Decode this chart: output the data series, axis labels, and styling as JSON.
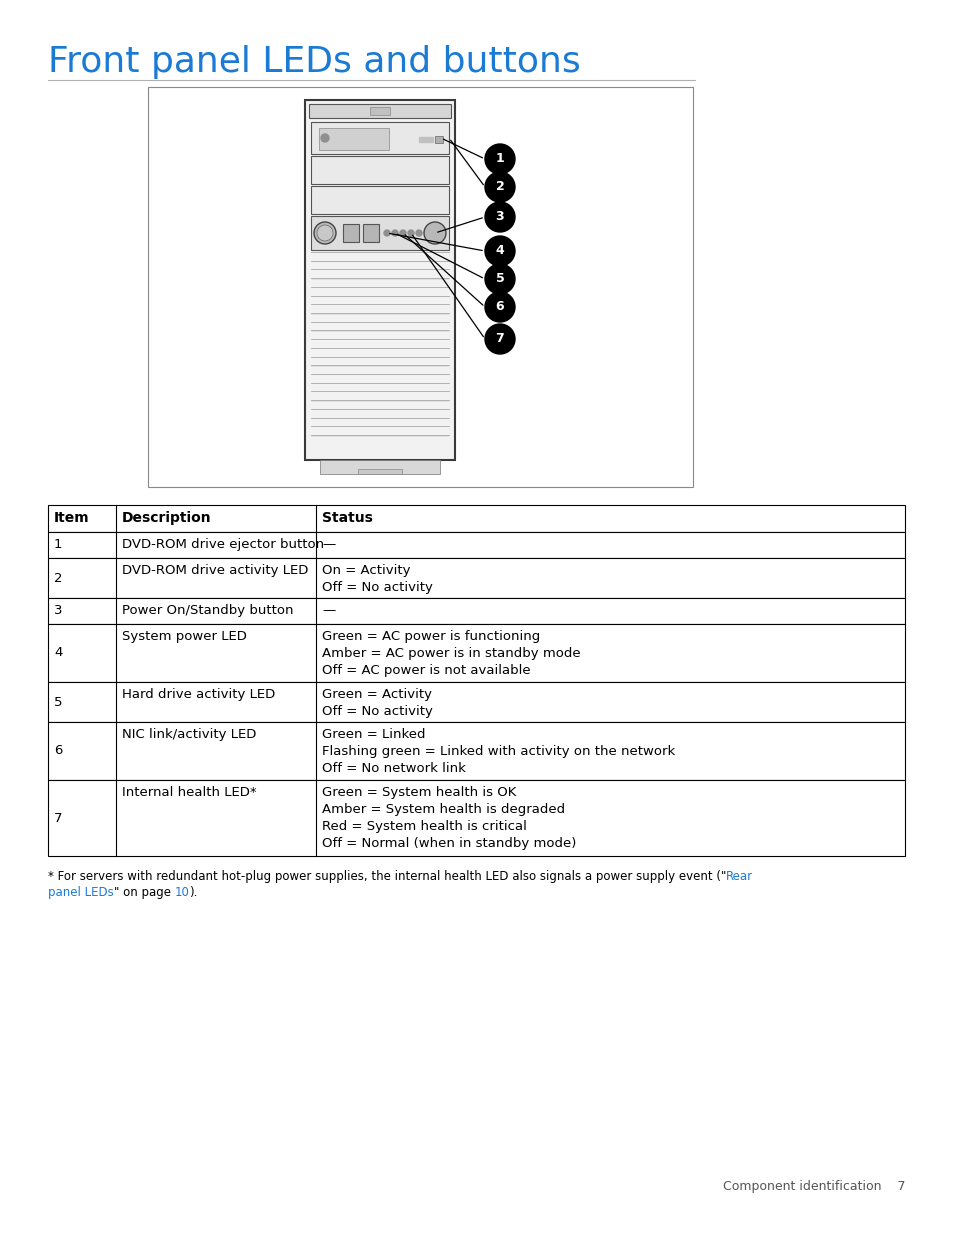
{
  "title": "Front panel LEDs and buttons",
  "title_color": "#1a7ad4",
  "title_fontsize": 26,
  "background_color": "#ffffff",
  "table_header": [
    "Item",
    "Description",
    "Status"
  ],
  "table_rows": [
    [
      "1",
      "DVD-ROM drive ejector button",
      "—"
    ],
    [
      "2",
      "DVD-ROM drive activity LED",
      "On = Activity\nOff = No activity"
    ],
    [
      "3",
      "Power On/Standby button",
      "—"
    ],
    [
      "4",
      "System power LED",
      "Green = AC power is functioning\nAmber = AC power is in standby mode\nOff = AC power is not available"
    ],
    [
      "5",
      "Hard drive activity LED",
      "Green = Activity\nOff = No activity"
    ],
    [
      "6",
      "NIC link/activity LED",
      "Green = Linked\nFlashing green = Linked with activity on the network\nOff = No network link"
    ],
    [
      "7",
      "Internal health LED*",
      "Green = System health is OK\nAmber = System health is degraded\nRed = System health is critical\nOff = Normal (when in standby mode)"
    ]
  ],
  "footnote_link_color": "#1a7ad4",
  "footer_text": "Component identification    7",
  "table_font_size": 9.5,
  "header_font_size": 10
}
